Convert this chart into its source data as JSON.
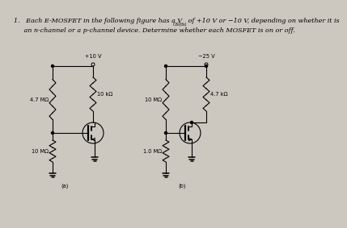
{
  "bg_color": "#ccc8c0",
  "title_line1": "1.   Each E-MOSFET in the following figure has a V",
  "title_vgs": "GS(th)",
  "title_line1b": " of +10 V or −10 V, depending on whether it is",
  "title_line2": "     an n-channel or a p-channel device. Determine whether each MOSFET is on or off.",
  "circ_a": {
    "label": "(a)",
    "vdd": "+10 V",
    "r1": "4.7 MΩ",
    "r2": "10 kΩ",
    "r3": "10 MΩ"
  },
  "circ_b": {
    "label": "(b)",
    "vdd": "−25 V",
    "r1": "10 MΩ",
    "r2": "4.7 kΩ",
    "r3": "1.0 MΩ"
  }
}
